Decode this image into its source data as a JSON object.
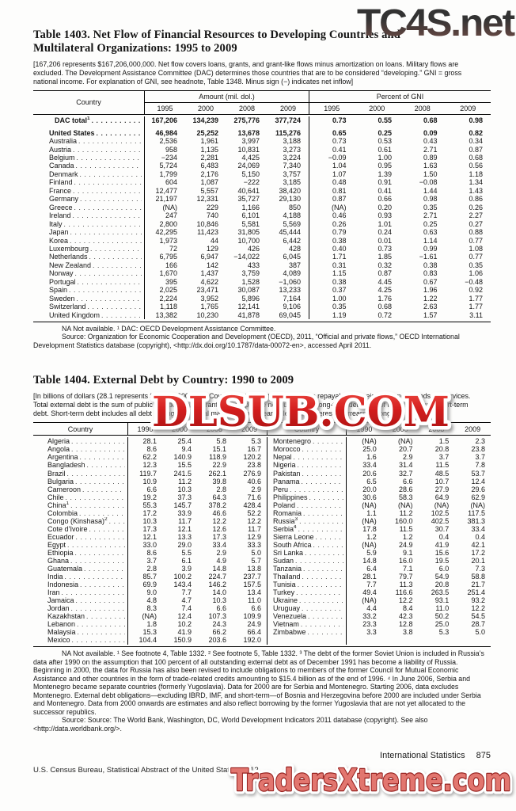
{
  "watermarks": {
    "top": "TC4S.net",
    "middle": "DLSUB.COM",
    "bottom": "TradersXtreme.com"
  },
  "table1403": {
    "title_line1": "Table 1403. Net Flow of Financial Resources to Developing Countries and",
    "title_line2": "Multilateral Organizations: 1995 to 2009",
    "headnote": "[167,206 represents $167,206,000,000. Net flow covers loans, grants, and grant-like flows minus amortization on loans. Military flows are excluded. The Development Assistance Committee (DAC) determines those countries that are to be considered “developing.” GNI = gross national income. For explanation of GNI, see headnote, Table 1348. Minus sign (−) indicates net inflow]",
    "col_country": "Country",
    "group1": "Amount (mil. dol.)",
    "group2": "Percent of GNI",
    "years": [
      "1995",
      "2000",
      "2008",
      "2009"
    ],
    "rows": [
      {
        "name": "DAC total",
        "sup": "1",
        "bold": true,
        "gap": true,
        "indent": true,
        "amt": [
          "167,206",
          "134,239",
          "275,776",
          "377,724"
        ],
        "pct": [
          "0.73",
          "0.55",
          "0.68",
          "0.98"
        ]
      },
      {
        "name": "United States",
        "sup": "",
        "bold": true,
        "amt": [
          "46,984",
          "25,252",
          "13,678",
          "115,276"
        ],
        "pct": [
          "0.65",
          "0.25",
          "0.09",
          "0.82"
        ]
      },
      {
        "name": "Australia",
        "sup": "",
        "amt": [
          "2,536",
          "1,961",
          "3,997",
          "3,188"
        ],
        "pct": [
          "0.73",
          "0.53",
          "0.43",
          "0.34"
        ]
      },
      {
        "name": "Austria",
        "sup": "",
        "amt": [
          "958",
          "1,135",
          "10,831",
          "3,273"
        ],
        "pct": [
          "0.41",
          "0.61",
          "2.71",
          "0.87"
        ]
      },
      {
        "name": "Belgium",
        "sup": "",
        "amt": [
          "−234",
          "2,281",
          "4,425",
          "3,224"
        ],
        "pct": [
          "−0.09",
          "1.00",
          "0.89",
          "0.68"
        ]
      },
      {
        "name": "Canada",
        "sup": "",
        "amt": [
          "5,724",
          "6,483",
          "24,069",
          "7,340"
        ],
        "pct": [
          "1.04",
          "0.95",
          "1.63",
          "0.56"
        ]
      },
      {
        "name": "Denmark",
        "sup": "",
        "amt": [
          "1,799",
          "2,176",
          "5,150",
          "3,757"
        ],
        "pct": [
          "1.07",
          "1.39",
          "1.50",
          "1.18"
        ]
      },
      {
        "name": "Finland",
        "sup": "",
        "amt": [
          "604",
          "1,087",
          "−222",
          "3,185"
        ],
        "pct": [
          "0.48",
          "0.91",
          "−0.08",
          "1.34"
        ]
      },
      {
        "name": "France",
        "sup": "",
        "amt": [
          "12,477",
          "5,557",
          "40,641",
          "38,420"
        ],
        "pct": [
          "0.81",
          "0.41",
          "1.44",
          "1.43"
        ]
      },
      {
        "name": "Germany",
        "sup": "",
        "amt": [
          "21,197",
          "12,331",
          "35,727",
          "29,130"
        ],
        "pct": [
          "0.87",
          "0.66",
          "0.98",
          "0.86"
        ]
      },
      {
        "name": "Greece",
        "sup": "",
        "amt": [
          "(NA)",
          "229",
          "1,166",
          "850"
        ],
        "pct": [
          "(NA)",
          "0.20",
          "0.35",
          "0.26"
        ]
      },
      {
        "name": "Ireland",
        "sup": "",
        "amt": [
          "247",
          "740",
          "6,101",
          "4,188"
        ],
        "pct": [
          "0.46",
          "0.93",
          "2.71",
          "2.27"
        ]
      },
      {
        "name": "Italy",
        "sup": "",
        "amt": [
          "2,800",
          "10,846",
          "5,581",
          "5,569"
        ],
        "pct": [
          "0.26",
          "1.01",
          "0.25",
          "0.27"
        ]
      },
      {
        "name": "Japan",
        "sup": "",
        "amt": [
          "42,295",
          "11,423",
          "31,805",
          "45,444"
        ],
        "pct": [
          "0.79",
          "0.24",
          "0.63",
          "0.88"
        ]
      },
      {
        "name": "Korea",
        "sup": "",
        "amt": [
          "1,973",
          "44",
          "10,700",
          "6,442"
        ],
        "pct": [
          "0.38",
          "0.01",
          "1.14",
          "0.77"
        ]
      },
      {
        "name": "Luxembourg",
        "sup": "",
        "amt": [
          "72",
          "129",
          "426",
          "428"
        ],
        "pct": [
          "0.40",
          "0.73",
          "0.99",
          "1.08"
        ]
      },
      {
        "name": "Netherlands",
        "sup": "",
        "amt": [
          "6,795",
          "6,947",
          "−14,022",
          "6,045"
        ],
        "pct": [
          "1.71",
          "1.85",
          "−1.61",
          "0.77"
        ]
      },
      {
        "name": "New Zealand",
        "sup": "",
        "amt": [
          "166",
          "142",
          "433",
          "387"
        ],
        "pct": [
          "0.31",
          "0.32",
          "0.38",
          "0.35"
        ]
      },
      {
        "name": "Norway",
        "sup": "",
        "amt": [
          "1,670",
          "1,437",
          "3,759",
          "4,089"
        ],
        "pct": [
          "1.15",
          "0.87",
          "0.83",
          "1.06"
        ]
      },
      {
        "name": "Portugal",
        "sup": "",
        "amt": [
          "395",
          "4,622",
          "1,528",
          "−1,060"
        ],
        "pct": [
          "0.38",
          "4.45",
          "0.67",
          "−0.48"
        ]
      },
      {
        "name": "Spain",
        "sup": "",
        "amt": [
          "2,025",
          "23,471",
          "30,087",
          "13,233"
        ],
        "pct": [
          "0.37",
          "4.25",
          "1.96",
          "0.92"
        ]
      },
      {
        "name": "Sweden",
        "sup": "",
        "amt": [
          "2,224",
          "3,952",
          "5,896",
          "7,164"
        ],
        "pct": [
          "1.00",
          "1.76",
          "1.22",
          "1.77"
        ]
      },
      {
        "name": "Switzerland",
        "sup": "",
        "amt": [
          "1,118",
          "1,765",
          "12,141",
          "9,106"
        ],
        "pct": [
          "0.35",
          "0.68",
          "2.63",
          "1.77"
        ]
      },
      {
        "name": "United Kingdom",
        "sup": "",
        "amt": [
          "13,382",
          "10,230",
          "41,878",
          "69,045"
        ],
        "pct": [
          "1.19",
          "0.72",
          "1.57",
          "3.11"
        ]
      }
    ],
    "footnote": "NA Not available. ¹ DAC: OECD Development Assistance Committee.",
    "source": "Source: Organization for Economic Cooperation and Development (OECD), 2011, “Official and private flows,” OECD International Development Statistics database (copyright), <http://dx.doi.org/10.1787/data-00072-en>, accessed April 2011."
  },
  "table1404": {
    "title": "Table 1404. External Debt by Country: 1990 to 2009",
    "headnote": "[In billions of dollars (28.1 represents $28,100,000,000). Covers debt owed to nonresidents repayable in foreign currency, goods, or services. Total external debt is the sum of public and publicly guaranteed and private nonguaranteed long-term debt, use of IMF credit, and short-term debt. Short-term debt includes all debt having an original maturity of one year or less and interest in arrears on long-term debt]",
    "col_country": "Country",
    "years": [
      "1990",
      "2000",
      "2008",
      "2009"
    ],
    "rows": [
      {
        "l": {
          "name": "Algeria",
          "sup": "",
          "vals": [
            "28.1",
            "25.4",
            "5.8",
            "5.3"
          ]
        },
        "r": {
          "name": "Montenegro",
          "sup": "",
          "vals": [
            "(NA)",
            "(NA)",
            "1.5",
            "2.3"
          ]
        }
      },
      {
        "l": {
          "name": "Angola",
          "sup": "",
          "vals": [
            "8.6",
            "9.4",
            "15.1",
            "16.7"
          ]
        },
        "r": {
          "name": "Morocco",
          "sup": "",
          "vals": [
            "25.0",
            "20.7",
            "20.8",
            "23.8"
          ]
        }
      },
      {
        "l": {
          "name": "Argentina",
          "sup": "",
          "vals": [
            "62.2",
            "140.9",
            "118.9",
            "120.2"
          ]
        },
        "r": {
          "name": "Nepal",
          "sup": "",
          "vals": [
            "1.6",
            "2.9",
            "3.7",
            "3.7"
          ]
        }
      },
      {
        "l": {
          "name": "Bangladesh",
          "sup": "",
          "vals": [
            "12.3",
            "15.5",
            "22.9",
            "23.8"
          ]
        },
        "r": {
          "name": "Nigeria",
          "sup": "",
          "vals": [
            "33.4",
            "31.4",
            "11.5",
            "7.8"
          ]
        }
      },
      {
        "l": {
          "name": "Brazil",
          "sup": "",
          "vals": [
            "119.7",
            "241.5",
            "262.1",
            "276.9"
          ]
        },
        "r": {
          "name": "Pakistan",
          "sup": "",
          "vals": [
            "20.6",
            "32.7",
            "48.5",
            "53.7"
          ]
        }
      },
      {
        "l": {
          "name": "Bulgaria",
          "sup": "",
          "vals": [
            "10.9",
            "11.2",
            "39.8",
            "40.6"
          ]
        },
        "r": {
          "name": "Panama",
          "sup": "",
          "vals": [
            "6.5",
            "6.6",
            "10.7",
            "12.4"
          ]
        }
      },
      {
        "l": {
          "name": "Cameroon",
          "sup": "",
          "vals": [
            "6.6",
            "10.3",
            "2.8",
            "2.9"
          ]
        },
        "r": {
          "name": "Peru",
          "sup": "",
          "vals": [
            "20.0",
            "28.6",
            "27.9",
            "29.6"
          ]
        }
      },
      {
        "l": {
          "name": "Chile",
          "sup": "",
          "vals": [
            "19.2",
            "37.3",
            "64.3",
            "71.6"
          ]
        },
        "r": {
          "name": "Philippines",
          "sup": "",
          "vals": [
            "30.6",
            "58.3",
            "64.9",
            "62.9"
          ]
        }
      },
      {
        "l": {
          "name": "China",
          "sup": "1",
          "vals": [
            "55.3",
            "145.7",
            "378.2",
            "428.4"
          ]
        },
        "r": {
          "name": "Poland",
          "sup": "",
          "vals": [
            "(NA)",
            "(NA)",
            "(NA)",
            "(NA)"
          ]
        }
      },
      {
        "l": {
          "name": "Colombia",
          "sup": "",
          "vals": [
            "17.2",
            "33.9",
            "46.6",
            "52.2"
          ]
        },
        "r": {
          "name": "Romania",
          "sup": "",
          "vals": [
            "1.1",
            "11.2",
            "102.5",
            "117.5"
          ]
        }
      },
      {
        "l": {
          "name": "Congo (Kinshasa)",
          "sup": "2",
          "vals": [
            "10.3",
            "11.7",
            "12.2",
            "12.2"
          ]
        },
        "r": {
          "name": "Russia",
          "sup": "3",
          "vals": [
            "(NA)",
            "160.0",
            "402.5",
            "381.3"
          ]
        }
      },
      {
        "l": {
          "name": "Cote d’Ivoire",
          "sup": "",
          "vals": [
            "17.3",
            "12.1",
            "12.6",
            "11.7"
          ]
        },
        "r": {
          "name": "Serbia",
          "sup": "4",
          "vals": [
            "17.8",
            "11.5",
            "30.7",
            "33.4"
          ]
        }
      },
      {
        "l": {
          "name": "Ecuador",
          "sup": "",
          "vals": [
            "12.1",
            "13.3",
            "17.3",
            "12.9"
          ]
        },
        "r": {
          "name": "Sierra Leone",
          "sup": "",
          "vals": [
            "1.2",
            "1.2",
            "0.4",
            "0.4"
          ]
        }
      },
      {
        "l": {
          "name": "Egypt",
          "sup": "",
          "vals": [
            "33.0",
            "29.0",
            "33.4",
            "33.3"
          ]
        },
        "r": {
          "name": "South Africa",
          "sup": "",
          "vals": [
            "(NA)",
            "24.9",
            "41.9",
            "42.1"
          ]
        }
      },
      {
        "l": {
          "name": "Ethiopia",
          "sup": "",
          "vals": [
            "8.6",
            "5.5",
            "2.9",
            "5.0"
          ]
        },
        "r": {
          "name": "Sri Lanka",
          "sup": "",
          "vals": [
            "5.9",
            "9.1",
            "15.6",
            "17.2"
          ]
        }
      },
      {
        "l": {
          "name": "Ghana",
          "sup": "",
          "vals": [
            "3.7",
            "6.1",
            "4.9",
            "5.7"
          ]
        },
        "r": {
          "name": "Sudan",
          "sup": "",
          "vals": [
            "14.8",
            "16.0",
            "19.5",
            "20.1"
          ]
        }
      },
      {
        "l": {
          "name": "Guatemala",
          "sup": "",
          "vals": [
            "2.8",
            "3.9",
            "14.8",
            "13.8"
          ]
        },
        "r": {
          "name": "Tanzania",
          "sup": "",
          "vals": [
            "6.4",
            "7.1",
            "6.0",
            "7.3"
          ]
        }
      },
      {
        "l": {
          "name": "India",
          "sup": "",
          "vals": [
            "85.7",
            "100.2",
            "224.7",
            "237.7"
          ]
        },
        "r": {
          "name": "Thailand",
          "sup": "",
          "vals": [
            "28.1",
            "79.7",
            "54.9",
            "58.8"
          ]
        }
      },
      {
        "l": {
          "name": "Indonesia",
          "sup": "",
          "vals": [
            "69.9",
            "143.4",
            "146.2",
            "157.5"
          ]
        },
        "r": {
          "name": "Tunisia",
          "sup": "",
          "vals": [
            "7.7",
            "11.3",
            "20.8",
            "21.7"
          ]
        }
      },
      {
        "l": {
          "name": "Iran",
          "sup": "",
          "vals": [
            "9.0",
            "7.7",
            "14.0",
            "13.4"
          ]
        },
        "r": {
          "name": "Turkey",
          "sup": "",
          "vals": [
            "49.4",
            "116.6",
            "263.5",
            "251.4"
          ]
        }
      },
      {
        "l": {
          "name": "Jamaica",
          "sup": "",
          "vals": [
            "4.8",
            "4.7",
            "10.3",
            "11.0"
          ]
        },
        "r": {
          "name": "Ukraine",
          "sup": "",
          "vals": [
            "(NA)",
            "12.2",
            "93.1",
            "93.2"
          ]
        }
      },
      {
        "l": {
          "name": "Jordan",
          "sup": "",
          "vals": [
            "8.3",
            "7.4",
            "6.6",
            "6.6"
          ]
        },
        "r": {
          "name": "Uruguay",
          "sup": "",
          "vals": [
            "4.4",
            "8.4",
            "11.0",
            "12.2"
          ]
        }
      },
      {
        "l": {
          "name": "Kazakhstan",
          "sup": "",
          "vals": [
            "(NA)",
            "12.4",
            "107.3",
            "109.9"
          ]
        },
        "r": {
          "name": "Venezuela",
          "sup": "",
          "vals": [
            "33.2",
            "42.3",
            "50.2",
            "54.5"
          ]
        }
      },
      {
        "l": {
          "name": "Lebanon",
          "sup": "",
          "vals": [
            "1.8",
            "10.2",
            "24.3",
            "24.9"
          ]
        },
        "r": {
          "name": "Vietnam",
          "sup": "",
          "vals": [
            "23.3",
            "12.8",
            "25.0",
            "28.7"
          ]
        }
      },
      {
        "l": {
          "name": "Malaysia",
          "sup": "",
          "vals": [
            "15.3",
            "41.9",
            "66.2",
            "66.4"
          ]
        },
        "r": {
          "name": "Zimbabwe",
          "sup": "",
          "vals": [
            "3.3",
            "3.8",
            "5.3",
            "5.0"
          ]
        }
      },
      {
        "l": {
          "name": "Mexico",
          "sup": "",
          "vals": [
            "104.4",
            "150.9",
            "203.6",
            "192.0"
          ]
        },
        "r": {
          "name": "",
          "sup": "",
          "vals": [
            "",
            "",
            "",
            ""
          ]
        }
      }
    ],
    "footnote": "NA Not available. ¹ See footnote 4, Table 1332. ² See footnote 5, Table 1332. ³ The debt of the former Soviet Union is included in Russia’s data after 1990 on the assumption that 100 percent of all outstanding external debt as of December 1991 has become a liability of Russia. Beginning in 2000, the data for Russia has also been revised to include obligations to members of the former Council for Mutual Economic Assistance and other countries in the form of trade-related credits amounting to $15.4 billion as of the end of 1996. ⁴ In June 2006, Serbia and Montenegro became separate countries (formerly Yugoslavia). Data for 2000 are for Serbia and Montenegro. Starting 2006, data excludes Montenegro. External debt obligations—excluding IBRD, IMF, and short-term—of Bosnia and Herzegovina before 2000 are included under Serbia and Montenegro. Data from 2000 onwards are estimates and also reflect borrowing by the former Yugoslavia that are not yet allocated to the successor republics.",
    "source": "Source: Source: The World Bank, Washington, DC, World Development Indicators 2011 database (copyright). See also <http://data.worldbank.org/>."
  },
  "footer": {
    "section_label": "International Statistics",
    "page_number": "875",
    "credit": "U.S. Census Bureau, Statistical Abstract of the United States: 2012"
  }
}
